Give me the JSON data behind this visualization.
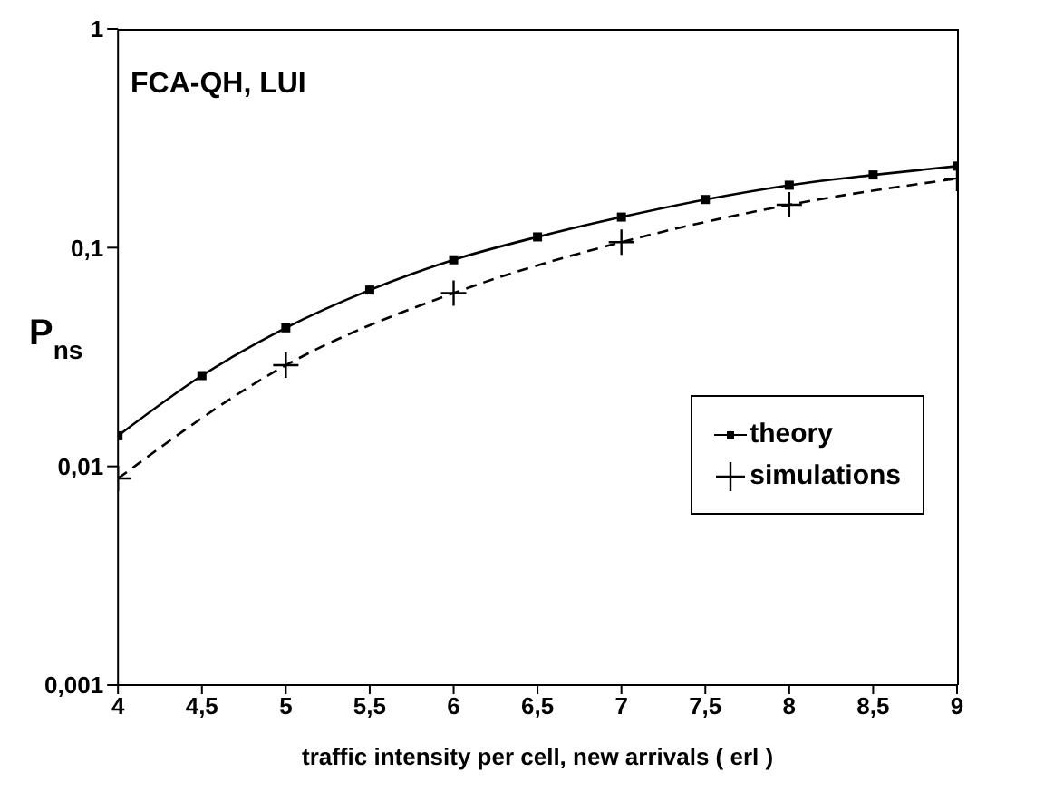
{
  "chart_data": {
    "type": "line",
    "xlabel": "traffic intensity per cell, new arrivals ( erl )",
    "ylabel": "P$_{ns}$",
    "annotations": [
      "FCA-QH, LUI"
    ],
    "log": "y",
    "grid": false,
    "legend": "bottom right",
    "xlim": [
      4,
      9
    ],
    "xticks": [
      4,
      {
        "value": 4.5,
        "label": "4,5"
      },
      5,
      {
        "value": 5.5,
        "label": "5,5"
      },
      6,
      {
        "value": 6.5,
        "label": "6,5"
      },
      7,
      {
        "value": 7.5,
        "label": "7,5"
      },
      8,
      {
        "value": 8.5,
        "label": "8,5"
      },
      9
    ],
    "ylim": [
      0.001,
      1
    ],
    "yticks": [
      {
        "value": 0.001,
        "label": "0,001"
      },
      {
        "value": 0.01,
        "label": "0,01"
      },
      {
        "value": 0.1,
        "label": "0,1"
      },
      1
    ],
    "series": [
      {
        "name": "theory",
        "color": "#000000",
        "marker": "square",
        "line_style": "solid",
        "x": [
          4,
          4.5,
          5,
          5.5,
          6,
          6.5,
          7,
          7.5,
          8,
          8.5,
          9
        ],
        "values": [
          0.0138,
          0.026,
          0.043,
          0.064,
          0.088,
          0.112,
          0.138,
          0.166,
          0.193,
          0.215,
          0.236
        ]
      },
      {
        "name": "simulations",
        "color": "#000000",
        "marker": "cross",
        "line_style": "dashed",
        "x": [
          4,
          5,
          6,
          7,
          8,
          9
        ],
        "values": [
          0.0088,
          0.029,
          0.062,
          0.106,
          0.157,
          0.207
        ]
      }
    ]
  }
}
